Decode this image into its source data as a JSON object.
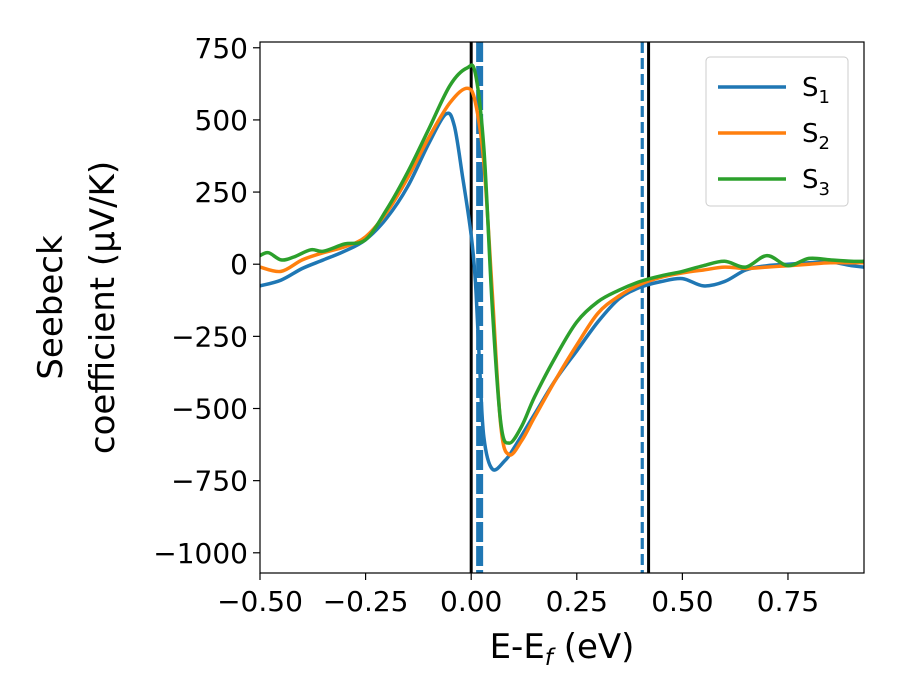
{
  "chart_data": {
    "type": "line",
    "xlabel": {
      "main": "E-E",
      "sub": "f",
      "tail": " (eV)"
    },
    "ylabel": {
      "line1": "Seebeck",
      "line2": "coefficient  (μV/K)"
    },
    "xlim": [
      -0.5,
      0.93
    ],
    "ylim": [
      -1070,
      770
    ],
    "xticks": [
      -0.5,
      -0.25,
      0.0,
      0.25,
      0.5,
      0.75
    ],
    "xtick_labels": [
      "−0.50",
      "−0.25",
      "0.00",
      "0.25",
      "0.50",
      "0.75"
    ],
    "yticks": [
      750,
      500,
      250,
      0,
      -250,
      -500,
      -750,
      -1000
    ],
    "ytick_labels": [
      "750",
      "500",
      "250",
      "0",
      "−250",
      "−500",
      "−750",
      "−1000"
    ],
    "grid": false,
    "legend_position": "top-right",
    "series": [
      {
        "name_base": "S",
        "name_sub": "1",
        "color": "#1f77b4",
        "points": [
          [
            -0.5,
            -75
          ],
          [
            -0.45,
            -55
          ],
          [
            -0.4,
            -15
          ],
          [
            -0.35,
            15
          ],
          [
            -0.3,
            45
          ],
          [
            -0.25,
            85
          ],
          [
            -0.2,
            160
          ],
          [
            -0.15,
            270
          ],
          [
            -0.1,
            420
          ],
          [
            -0.06,
            520
          ],
          [
            -0.04,
            480
          ],
          [
            -0.02,
            300
          ],
          [
            0.0,
            100
          ],
          [
            0.01,
            -60
          ],
          [
            0.02,
            -350
          ],
          [
            0.03,
            -600
          ],
          [
            0.05,
            -710
          ],
          [
            0.08,
            -680
          ],
          [
            0.1,
            -640
          ],
          [
            0.15,
            -520
          ],
          [
            0.2,
            -400
          ],
          [
            0.25,
            -300
          ],
          [
            0.3,
            -200
          ],
          [
            0.35,
            -120
          ],
          [
            0.4,
            -80
          ],
          [
            0.45,
            -60
          ],
          [
            0.5,
            -50
          ],
          [
            0.55,
            -75
          ],
          [
            0.6,
            -60
          ],
          [
            0.65,
            -20
          ],
          [
            0.7,
            -5
          ],
          [
            0.75,
            0
          ],
          [
            0.8,
            5
          ],
          [
            0.85,
            8
          ],
          [
            0.9,
            -5
          ],
          [
            0.93,
            -10
          ]
        ]
      },
      {
        "name_base": "S",
        "name_sub": "2",
        "color": "#ff7f0e",
        "points": [
          [
            -0.5,
            -10
          ],
          [
            -0.45,
            -25
          ],
          [
            -0.4,
            15
          ],
          [
            -0.35,
            40
          ],
          [
            -0.3,
            60
          ],
          [
            -0.25,
            95
          ],
          [
            -0.2,
            180
          ],
          [
            -0.15,
            300
          ],
          [
            -0.1,
            440
          ],
          [
            -0.05,
            560
          ],
          [
            -0.01,
            610
          ],
          [
            0.01,
            560
          ],
          [
            0.03,
            350
          ],
          [
            0.05,
            -100
          ],
          [
            0.07,
            -560
          ],
          [
            0.09,
            -660
          ],
          [
            0.12,
            -610
          ],
          [
            0.15,
            -530
          ],
          [
            0.2,
            -400
          ],
          [
            0.25,
            -280
          ],
          [
            0.3,
            -170
          ],
          [
            0.35,
            -110
          ],
          [
            0.4,
            -70
          ],
          [
            0.45,
            -45
          ],
          [
            0.5,
            -30
          ],
          [
            0.55,
            -20
          ],
          [
            0.6,
            -10
          ],
          [
            0.65,
            -15
          ],
          [
            0.7,
            -10
          ],
          [
            0.75,
            -5
          ],
          [
            0.8,
            0
          ],
          [
            0.85,
            5
          ],
          [
            0.9,
            5
          ],
          [
            0.93,
            5
          ]
        ]
      },
      {
        "name_base": "S",
        "name_sub": "3",
        "color": "#2ca02c",
        "points": [
          [
            -0.5,
            30
          ],
          [
            -0.48,
            40
          ],
          [
            -0.45,
            15
          ],
          [
            -0.42,
            25
          ],
          [
            -0.38,
            50
          ],
          [
            -0.35,
            45
          ],
          [
            -0.3,
            70
          ],
          [
            -0.25,
            85
          ],
          [
            -0.2,
            190
          ],
          [
            -0.15,
            320
          ],
          [
            -0.1,
            470
          ],
          [
            -0.05,
            620
          ],
          [
            -0.01,
            680
          ],
          [
            0.01,
            660
          ],
          [
            0.03,
            400
          ],
          [
            0.05,
            -150
          ],
          [
            0.07,
            -550
          ],
          [
            0.09,
            -620
          ],
          [
            0.12,
            -560
          ],
          [
            0.15,
            -460
          ],
          [
            0.2,
            -320
          ],
          [
            0.25,
            -200
          ],
          [
            0.3,
            -130
          ],
          [
            0.35,
            -90
          ],
          [
            0.4,
            -60
          ],
          [
            0.45,
            -40
          ],
          [
            0.5,
            -25
          ],
          [
            0.55,
            -5
          ],
          [
            0.6,
            10
          ],
          [
            0.65,
            -10
          ],
          [
            0.7,
            30
          ],
          [
            0.75,
            -5
          ],
          [
            0.8,
            20
          ],
          [
            0.85,
            15
          ],
          [
            0.9,
            10
          ],
          [
            0.93,
            10
          ]
        ]
      }
    ],
    "vertical_lines": [
      {
        "x": 0.0,
        "style": "solid",
        "color": "#000000"
      },
      {
        "x": 0.42,
        "style": "solid",
        "color": "#000000"
      },
      {
        "x": 0.02,
        "style": "dashed-thick",
        "color": "#1f77b4"
      },
      {
        "x": 0.405,
        "style": "dashed",
        "color": "#1f77b4"
      }
    ]
  }
}
